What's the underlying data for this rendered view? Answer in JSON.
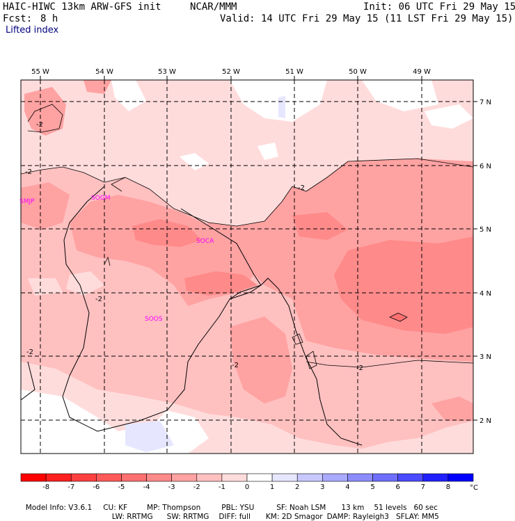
{
  "header": {
    "model": "HAIC-HIWC 13km ARW-GFS init",
    "org": "NCAR/MMM",
    "init": "Init: 06 UTC Fri 29 May 15",
    "fcst_label": "Fcst:",
    "fcst_value": "8 h",
    "valid": "Valid: 14 UTC Fri 29 May 15 (11 LST Fri 29 May 15)",
    "field": "Lifted index"
  },
  "map": {
    "lon_labels": [
      "55 W",
      "54 W",
      "53 W",
      "52 W",
      "51 W",
      "50 W",
      "49 W"
    ],
    "lat_labels": [
      "7 N",
      "6 N",
      "5 N",
      "4 N",
      "3 N",
      "2 N"
    ],
    "stations": [
      "SMJP",
      "SOGM",
      "SOCA",
      "SOOS"
    ],
    "contour_label": "-2",
    "station_color": "#ff00ff"
  },
  "colorbar": {
    "tick_labels": [
      "-8",
      "-7",
      "-6",
      "-5",
      "-4",
      "-3",
      "-2",
      "-1",
      "0",
      "1",
      "2",
      "3",
      "4",
      "5",
      "6",
      "7",
      "8"
    ],
    "unit": "°C",
    "colors": [
      "#ff0000",
      "#ff2020",
      "#ff4040",
      "#ff5a5a",
      "#ff7070",
      "#ff8a8a",
      "#ffa2a2",
      "#ffc0c0",
      "#ffdcdc",
      "#ffffff",
      "#e6e6ff",
      "#c8c8ff",
      "#aaaaff",
      "#8c8cff",
      "#6e6eff",
      "#4b4bff",
      "#2020ff",
      "#0000ff"
    ]
  },
  "footer": {
    "line1": [
      "Model Info: V3.6.1",
      "CU: KF",
      "MP: Thompson",
      "PBL: YSU",
      "SF: Noah LSM",
      "13 km",
      "51 levels",
      "60 sec"
    ],
    "line2": [
      "LW: RRTMG",
      "SW: RRTMG",
      "DIFF: full",
      "KM: 2D Smagor",
      "DAMP: Rayleigh3",
      "SFLAY: MM5"
    ]
  }
}
